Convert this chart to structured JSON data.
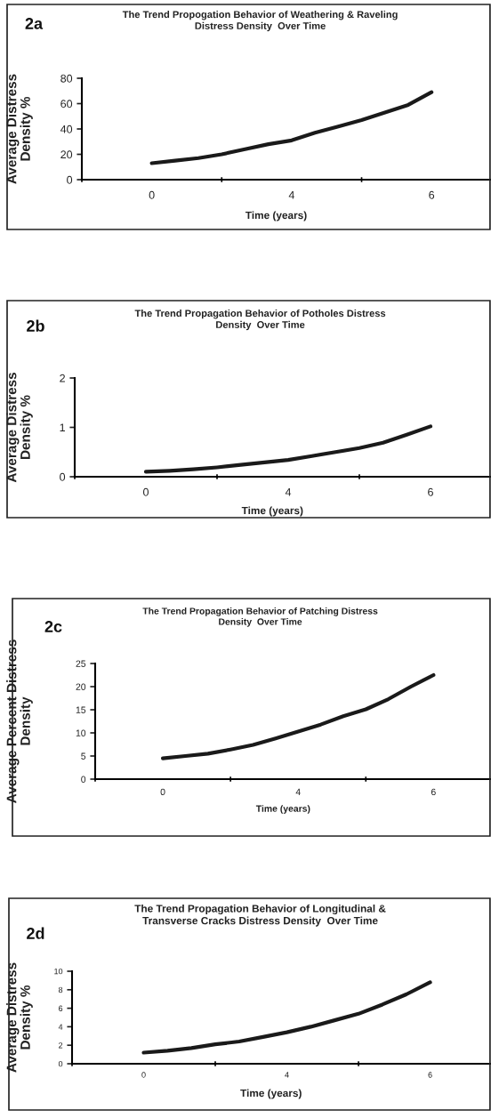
{
  "chart_data": [
    {
      "type": "line",
      "title": "The Trend Propogation Behavior of Weathering & Raveling\nDistress Density  Over Time",
      "xlabel": "Time (years)",
      "ylabel": "Average Distress\nDensity %",
      "annotations": [
        "2a"
      ],
      "categories": [
        "0",
        null,
        null,
        null,
        null,
        null,
        "4",
        null,
        null,
        null,
        null,
        null,
        "6"
      ],
      "series": [
        {
          "color": "#1a1a1a",
          "values": [
            13,
            15,
            17,
            20,
            24,
            28,
            31,
            37,
            42,
            47,
            53,
            59,
            69
          ]
        }
      ],
      "ylim": [
        0,
        80
      ],
      "yticks": [
        0,
        20,
        40,
        60,
        80
      ],
      "grid": false,
      "legend": false,
      "marker": "none",
      "line_style": "solid"
    },
    {
      "type": "line",
      "title": "The Trend Propagation Behavior of Potholes Distress\nDensity  Over Time",
      "xlabel": "Time (years)",
      "ylabel": "Average Distress\nDensity %",
      "annotations": [
        "2b"
      ],
      "categories": [
        "0",
        null,
        null,
        null,
        null,
        null,
        "4",
        null,
        null,
        null,
        null,
        null,
        "6"
      ],
      "series": [
        {
          "color": "#1a1a1a",
          "values": [
            0.1,
            0.12,
            0.15,
            0.19,
            0.24,
            0.29,
            0.34,
            0.42,
            0.5,
            0.58,
            0.69,
            0.85,
            1.02
          ]
        }
      ],
      "ylim": [
        0,
        2
      ],
      "yticks": [
        0,
        1,
        2
      ],
      "grid": false,
      "legend": false,
      "marker": "none",
      "line_style": "solid"
    },
    {
      "type": "line",
      "title": "The Trend Propagation Behavior of Patching Distress\nDensity  Over Time",
      "xlabel": "Time (years)",
      "ylabel": "Average Percent Distress\nDensity",
      "annotations": [
        "2c"
      ],
      "categories": [
        "0",
        null,
        null,
        null,
        null,
        null,
        "4",
        null,
        null,
        null,
        null,
        null,
        "6"
      ],
      "series": [
        {
          "color": "#1a1a1a",
          "values": [
            4.5,
            5.0,
            5.5,
            6.4,
            7.4,
            8.8,
            10.3,
            11.8,
            13.6,
            15.1,
            17.3,
            20,
            22.5
          ]
        }
      ],
      "ylim": [
        0,
        25
      ],
      "yticks": [
        0,
        5,
        10,
        15,
        20,
        25
      ],
      "grid": false,
      "legend": false,
      "marker": "none",
      "line_style": "solid"
    },
    {
      "type": "line",
      "title": "The Trend Propagation Behavior of Longitudinal &\nTransverse Cracks Distress Density  Over Time",
      "xlabel": "Time (years)",
      "ylabel": "Average Distress\nDensity %",
      "annotations": [
        "2d"
      ],
      "categories": [
        "0",
        null,
        null,
        null,
        null,
        null,
        "4",
        null,
        null,
        null,
        null,
        null,
        "6"
      ],
      "series": [
        {
          "color": "#1a1a1a",
          "values": [
            1.2,
            1.4,
            1.7,
            2.1,
            2.4,
            2.9,
            3.4,
            4.0,
            4.7,
            5.4,
            6.4,
            7.5,
            8.8
          ]
        }
      ],
      "ylim": [
        0,
        10
      ],
      "yticks": [
        0,
        2,
        4,
        6,
        8,
        10
      ],
      "grid": false,
      "legend": false,
      "marker": "none",
      "line_style": "solid"
    }
  ]
}
